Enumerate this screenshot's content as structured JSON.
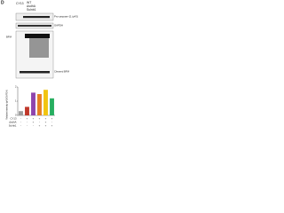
{
  "panel_label": "D",
  "header": {
    "rows": [
      "CY13",
      "WT",
      "ΔsdhA",
      "Sulnb1"
    ]
  },
  "blot": {
    "labels": [
      "Pro-caspase-11 (p43)",
      "GAPDH",
      "BFM",
      "Cleaved BFM"
    ]
  },
  "chart_data": {
    "type": "bar",
    "y_label": "Relative intensity (p43/GAPDH)",
    "categories": [
      null,
      null,
      null,
      null,
      null,
      null
    ],
    "values": [
      0.3,
      0.6,
      1.6,
      1.5,
      1.8,
      1.2
    ],
    "colors": [
      "#9e9e9e",
      "#c0392b",
      "#8e44ad",
      "#e67e22",
      "#f1c40f",
      "#27ae60"
    ],
    "ylim": [
      0,
      2
    ],
    "yticks": [
      0,
      1,
      2
    ]
  },
  "condition_table": {
    "rows": [
      {
        "label": "CY13",
        "marks": [
          "-",
          "+",
          "+",
          "+",
          "+",
          "+"
        ]
      },
      {
        "label": "ΔsdhA",
        "marks": [
          "-",
          "-",
          "+",
          "-",
          "+",
          "-"
        ]
      },
      {
        "label": "Sulnb1",
        "marks": [
          "-",
          "-",
          "-",
          "+",
          "+",
          "+"
        ]
      }
    ]
  }
}
